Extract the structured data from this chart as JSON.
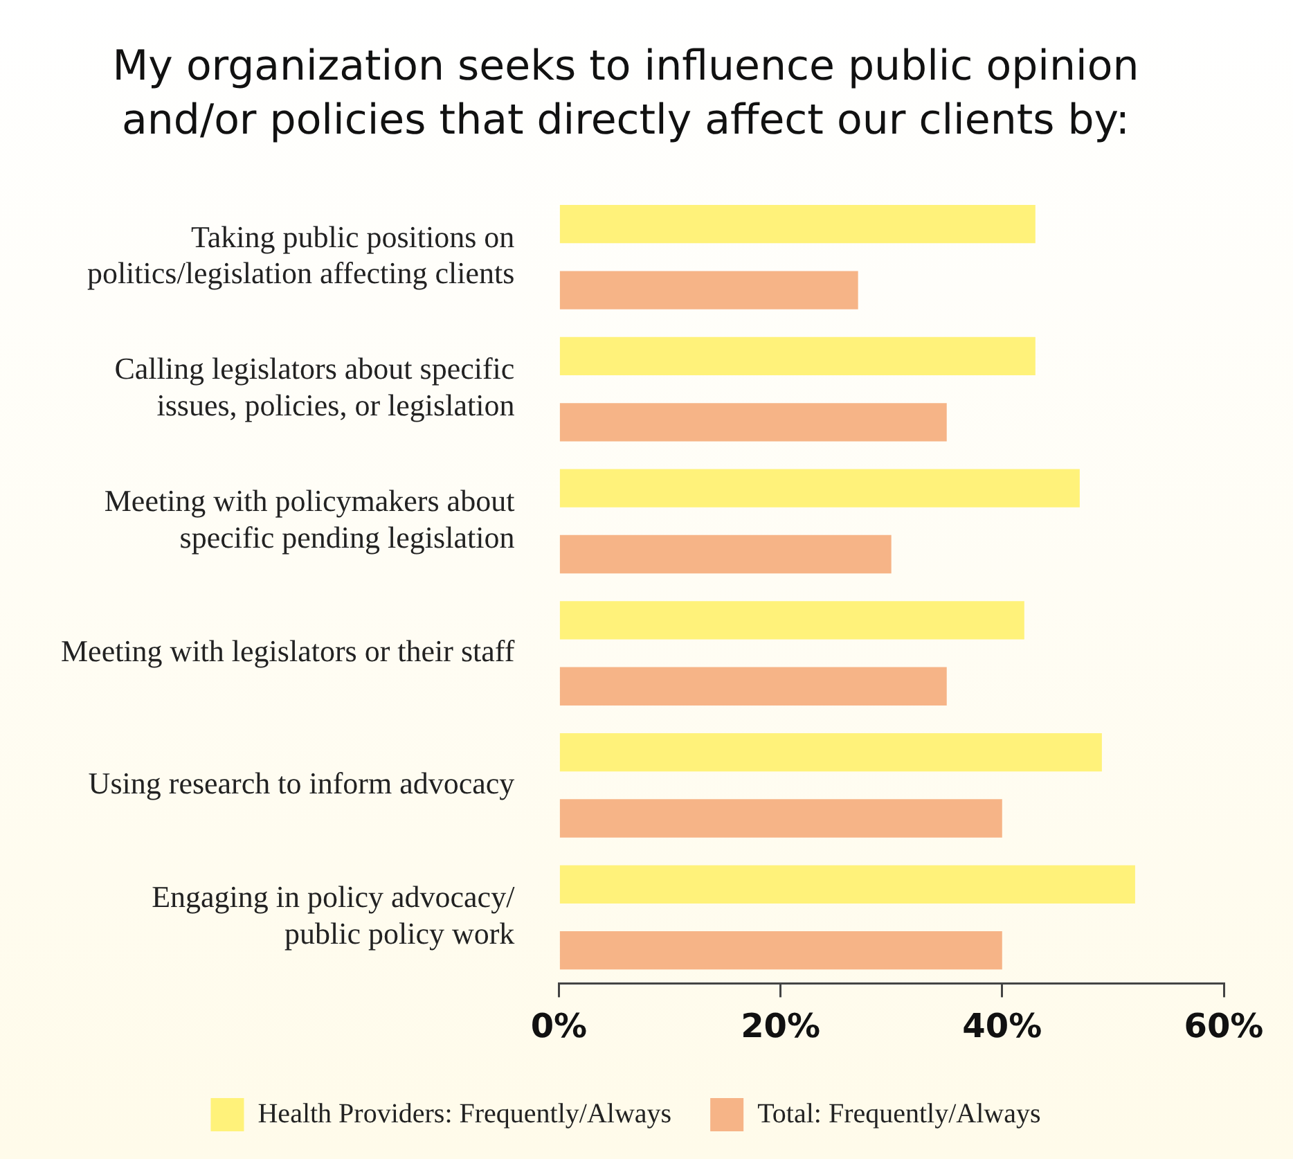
{
  "chart_data": {
    "type": "bar",
    "orientation": "horizontal",
    "title": "My organization seeks to influence public opinion\nand/or policies that directly affect our clients by:",
    "categories": [
      "Taking public positions on\npolitics/legislation affecting clients",
      "Calling legislators about specific\nissues, policies, or legislation",
      "Meeting with policymakers about\nspecific pending legislation",
      "Meeting with legislators or their staff",
      "Using research to inform advocacy",
      "Engaging in policy advocacy/\npublic policy work"
    ],
    "series": [
      {
        "name": "Health Providers: Frequently/Always",
        "color": "#fff27a",
        "values": [
          43,
          43,
          47,
          42,
          49,
          52
        ]
      },
      {
        "name": "Total: Frequently/Always",
        "color": "#f6b487",
        "values": [
          27,
          35,
          30,
          35,
          40,
          40
        ]
      }
    ],
    "xlim": [
      0,
      60
    ],
    "xticks": [
      {
        "value": 0,
        "label": "0%"
      },
      {
        "value": 20,
        "label": "20%"
      },
      {
        "value": 40,
        "label": "40%"
      },
      {
        "value": 60,
        "label": "60%"
      }
    ],
    "grid": false,
    "legend": "bottom"
  }
}
